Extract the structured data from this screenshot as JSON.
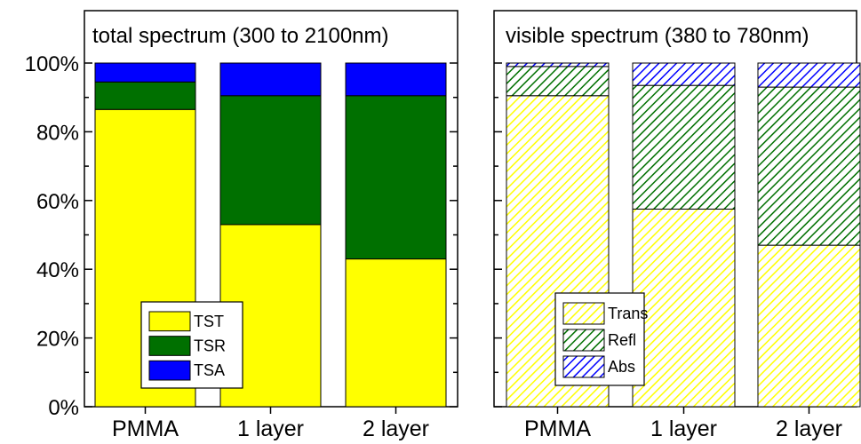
{
  "chart_data": [
    {
      "type": "bar",
      "stacked": true,
      "title": "total spectrum (300 to 2100nm)",
      "categories": [
        "PMMA",
        "1 layer",
        "2 layer"
      ],
      "series": [
        {
          "name": "TST",
          "values": [
            86.5,
            53.0,
            43.0
          ],
          "color": "#ffff00",
          "pattern": "solid"
        },
        {
          "name": "TSR",
          "values": [
            8.0,
            37.5,
            47.5
          ],
          "color": "#007000",
          "pattern": "solid"
        },
        {
          "name": "TSA",
          "values": [
            5.5,
            9.5,
            9.5
          ],
          "color": "#0000ff",
          "pattern": "solid"
        }
      ],
      "ylim": [
        0,
        100
      ],
      "yticks": [
        "0%",
        "20%",
        "40%",
        "60%",
        "80%",
        "100%"
      ],
      "legend": "bottom-left",
      "grid": false
    },
    {
      "type": "bar",
      "stacked": true,
      "title": "visible spectrum (380 to 780nm)",
      "categories": [
        "PMMA",
        "1 layer",
        "2 layer"
      ],
      "series": [
        {
          "name": "Trans",
          "values": [
            90.5,
            57.5,
            47.0
          ],
          "color": "#ffff00",
          "pattern": "hatch"
        },
        {
          "name": "Refl",
          "values": [
            8.5,
            36.0,
            46.0
          ],
          "color": "#007000",
          "pattern": "hatch"
        },
        {
          "name": "Abs",
          "values": [
            1.0,
            6.5,
            7.0
          ],
          "color": "#0000ff",
          "pattern": "hatch"
        }
      ],
      "ylim": [
        0,
        100
      ],
      "legend": "bottom-center",
      "grid": false
    }
  ]
}
